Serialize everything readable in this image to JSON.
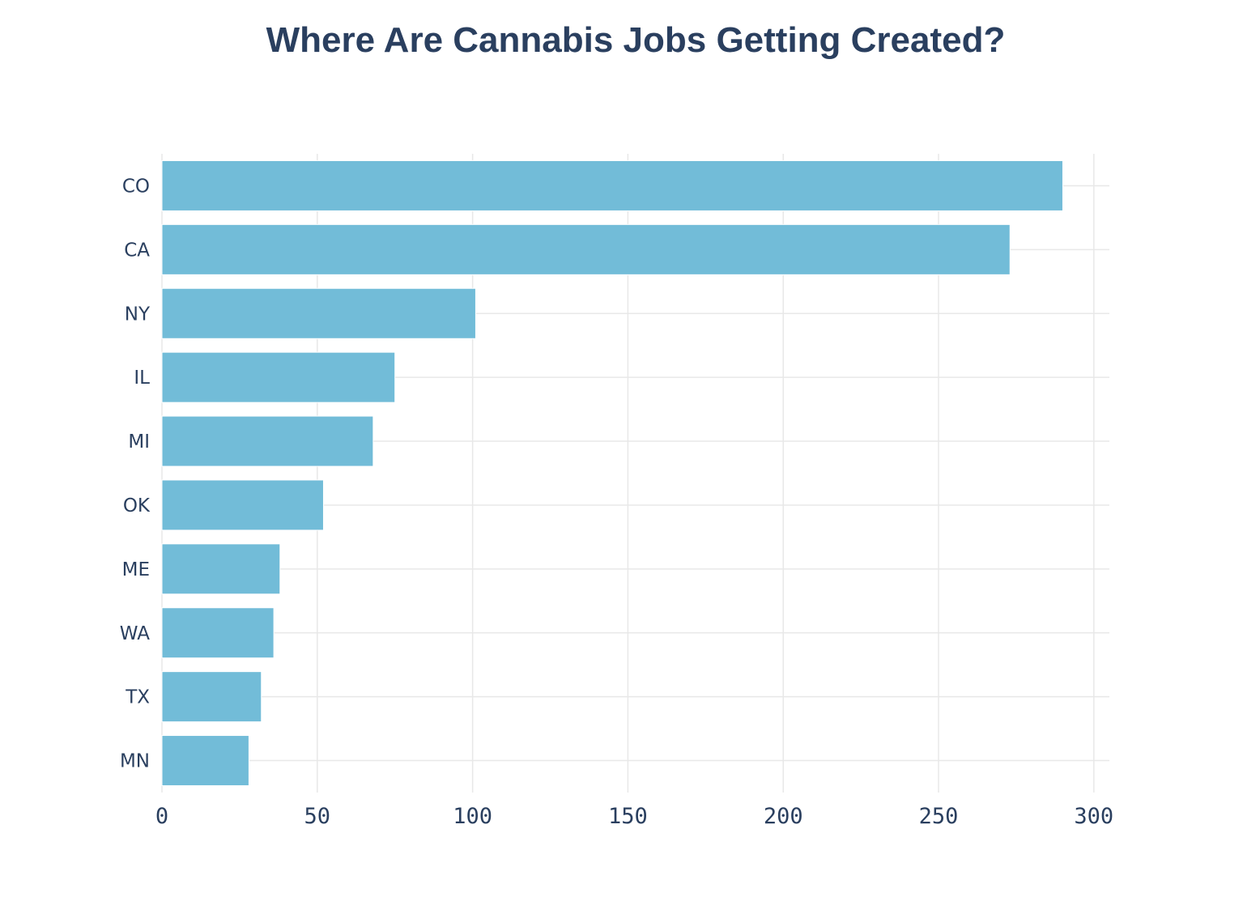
{
  "chart_data": {
    "type": "bar",
    "orientation": "horizontal",
    "title": "Where Are Cannabis Jobs Getting Created?",
    "xlabel": "",
    "ylabel": "",
    "categories": [
      "CO",
      "CA",
      "NY",
      "IL",
      "MI",
      "OK",
      "ME",
      "WA",
      "TX",
      "MN"
    ],
    "values": [
      290,
      273,
      101,
      75,
      68,
      52,
      38,
      36,
      32,
      28
    ],
    "xlim": [
      0,
      305
    ],
    "xticks": [
      0,
      50,
      100,
      150,
      200,
      250,
      300
    ],
    "xtick_labels": [
      "0",
      "50",
      "100",
      "150",
      "200",
      "250",
      "300"
    ],
    "grid": true,
    "legend": "none",
    "colors": {
      "bar": "#72bcd8",
      "text": "#2a3f5f",
      "grid": "#e8e8e8"
    }
  }
}
